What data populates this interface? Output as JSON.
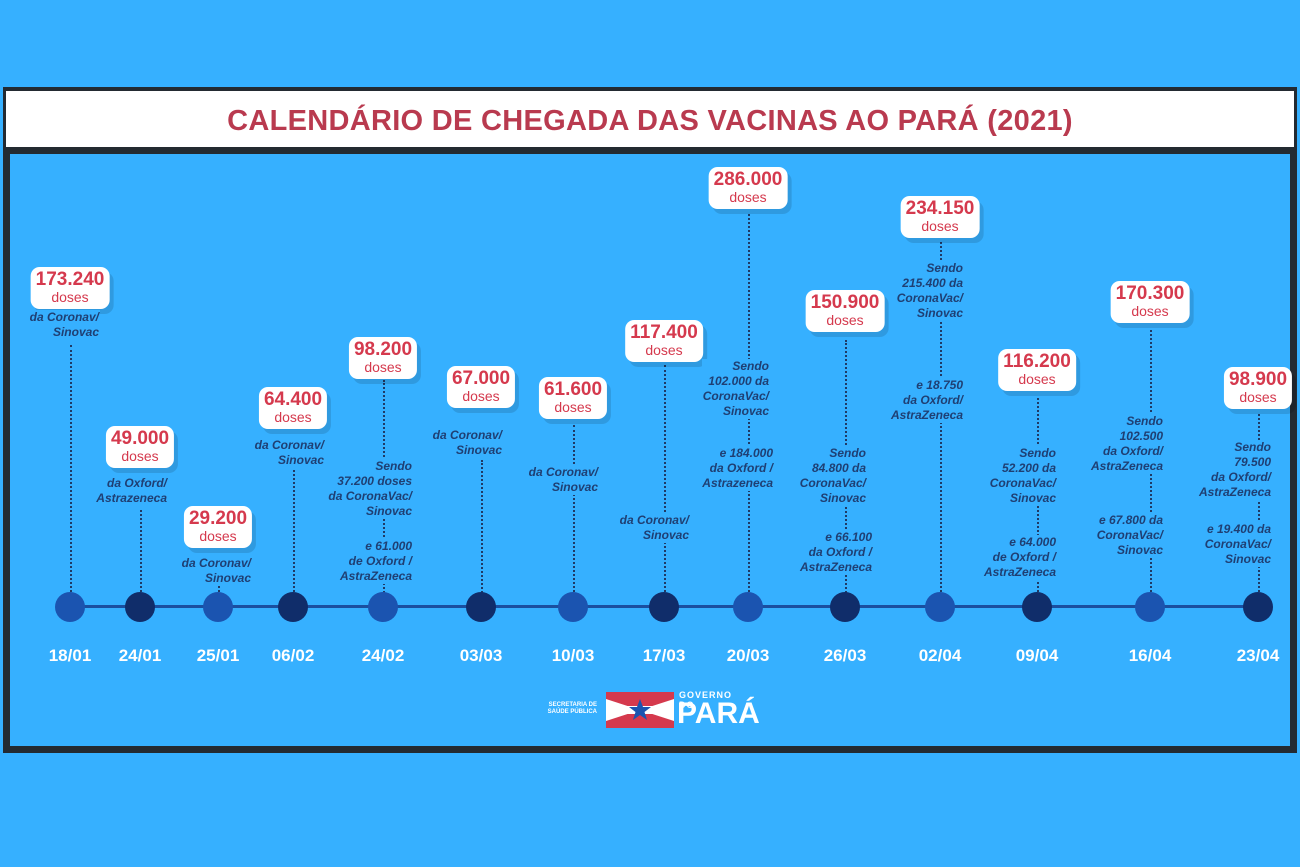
{
  "title": "CALENDÁRIO DE CHEGADA DAS VACINAS AO PARÁ (2021)",
  "logo": {
    "secretaria": "SECRETARIA DE SAÚDE PÚBLICA",
    "governo": "GOVERNO DO",
    "para": "PARÁ"
  },
  "events": [
    {
      "date": "18/01",
      "doses": "173.240",
      "unit": "doses",
      "notes": [
        "da Coronav/\nSinovac"
      ]
    },
    {
      "date": "24/01",
      "doses": "49.000",
      "unit": "doses",
      "notes": [
        "da Oxford/\nAstrazeneca"
      ]
    },
    {
      "date": "25/01",
      "doses": "29.200",
      "unit": "doses",
      "notes": [
        "da Coronav/\nSinovac"
      ]
    },
    {
      "date": "06/02",
      "doses": "64.400",
      "unit": "doses",
      "notes": [
        "da Coronav/\nSinovac"
      ]
    },
    {
      "date": "24/02",
      "doses": "98.200",
      "unit": "doses",
      "notes": [
        "Sendo\n37.200 doses\nda CoronaVac/\nSinovac",
        "e 61.000\nde Oxford /\nAstraZeneca"
      ]
    },
    {
      "date": "03/03",
      "doses": "67.000",
      "unit": "doses",
      "notes": [
        "da Coronav/\nSinovac"
      ]
    },
    {
      "date": "10/03",
      "doses": "61.600",
      "unit": "doses",
      "notes": [
        "da Coronav/\nSinovac"
      ]
    },
    {
      "date": "17/03",
      "doses": "117.400",
      "unit": "doses",
      "notes": [
        "da Coronav/\nSinovac"
      ]
    },
    {
      "date": "20/03",
      "doses": "286.000",
      "unit": "doses",
      "notes": [
        "Sendo\n102.000 da\nCoronaVac/\nSinovac",
        "e 184.000\nda Oxford /\nAstrazeneca"
      ]
    },
    {
      "date": "26/03",
      "doses": "150.900",
      "unit": "doses",
      "notes": [
        "Sendo\n84.800 da\nCoronaVac/\nSinovac",
        "e 66.100\nda Oxford /\nAstraZeneca"
      ]
    },
    {
      "date": "02/04",
      "doses": "234.150",
      "unit": "doses",
      "notes": [
        "Sendo\n215.400 da\nCoronaVac/\nSinovac",
        "e 18.750\nda Oxford/\nAstraZeneca"
      ]
    },
    {
      "date": "09/04",
      "doses": "116.200",
      "unit": "doses",
      "notes": [
        "Sendo\n52.200 da\nCoronaVac/\nSinovac",
        "e 64.000\nde Oxford /\nAstraZeneca"
      ]
    },
    {
      "date": "16/04",
      "doses": "170.300",
      "unit": "doses",
      "notes": [
        "Sendo\n102.500\nda Oxford/\nAstraZeneca",
        "e 67.800 da\nCoronaVac/\nSinovac"
      ]
    },
    {
      "date": "23/04",
      "doses": "98.900",
      "unit": "doses",
      "notes": [
        "Sendo\n79.500\nda Oxford/\nAstraZeneca",
        "e 19.400 da\nCoronaVac/\nSinovac"
      ]
    }
  ]
}
